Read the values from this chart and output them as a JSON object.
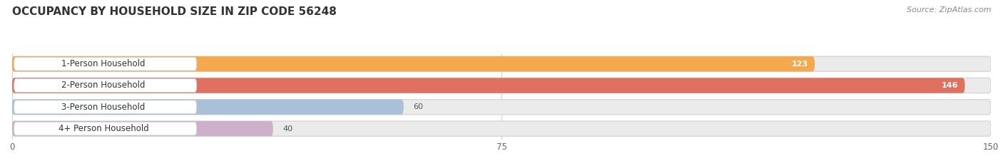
{
  "title": "OCCUPANCY BY HOUSEHOLD SIZE IN ZIP CODE 56248",
  "source": "Source: ZipAtlas.com",
  "categories": [
    "1-Person Household",
    "2-Person Household",
    "3-Person Household",
    "4+ Person Household"
  ],
  "values": [
    123,
    146,
    60,
    40
  ],
  "bar_colors": [
    "#F5A94E",
    "#E07060",
    "#A8C0D8",
    "#CDB0CC"
  ],
  "value_text_colors": [
    "white",
    "white",
    "black",
    "black"
  ],
  "xlim": [
    0,
    150
  ],
  "xticks": [
    0,
    75,
    150
  ],
  "background_color": "#ffffff",
  "bar_bg_color": "#e8e8e8",
  "title_fontsize": 11,
  "label_fontsize": 8.5,
  "value_fontsize": 8,
  "source_fontsize": 8
}
